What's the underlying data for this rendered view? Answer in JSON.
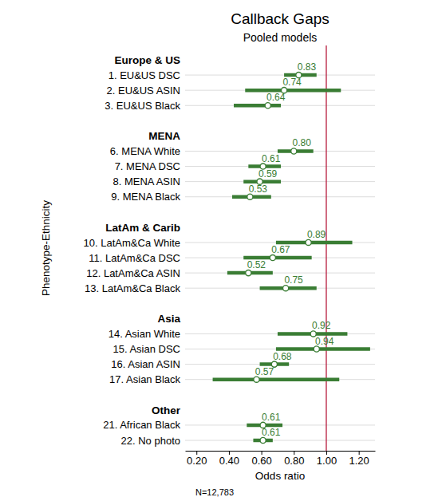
{
  "chart_data": {
    "type": "forest",
    "title": "Callback Gaps",
    "subtitle": "Pooled models",
    "x_label": "Odds ratio",
    "y_label": "Phenotype-Ethnicity",
    "note": "N=12,783",
    "orientation": "horizontal",
    "data_labels": true,
    "grid": true,
    "color": "#3a7d34",
    "xlim": [
      0.13,
      1.3
    ],
    "xticks": [
      {
        "value": 0.2,
        "label": "0.20"
      },
      {
        "value": 0.4,
        "label": "0.40"
      },
      {
        "value": 0.6,
        "label": "0.60"
      },
      {
        "value": 0.8,
        "label": "0.80"
      },
      {
        "value": 1.0,
        "label": "1.00"
      },
      {
        "value": 1.2,
        "label": "1.20"
      }
    ],
    "reference_line": {
      "value": 1,
      "color": "#b5173a"
    },
    "groups": [
      {
        "name": "Europe & US",
        "categories": [
          "1. EU&US DSC",
          "2. EU&US ASIN",
          "3. EU&US Black"
        ],
        "values": [
          0.83,
          0.74,
          0.64
        ],
        "value_labels": [
          "0.83",
          "0.74",
          "0.64"
        ],
        "ci_low": [
          0.74,
          0.5,
          0.43
        ],
        "ci_high": [
          0.94,
          1.09,
          0.72
        ]
      },
      {
        "name": "MENA",
        "categories": [
          "6. MENA White",
          "7. MENA DSC",
          "8. MENA ASIN",
          "9. MENA Black"
        ],
        "values": [
          0.8,
          0.61,
          0.59,
          0.53
        ],
        "value_labels": [
          "0.80",
          "0.61",
          "0.59",
          "0.53"
        ],
        "ci_low": [
          0.7,
          0.52,
          0.49,
          0.42
        ],
        "ci_high": [
          0.92,
          0.72,
          0.72,
          0.66
        ]
      },
      {
        "name": "LatAm & Carib",
        "categories": [
          "10. LatAm&Ca White",
          "11. LatAm&Ca DSC",
          "12. LatAm&Ca ASIN",
          "13. LatAm&Ca Black"
        ],
        "values": [
          0.89,
          0.67,
          0.52,
          0.75
        ],
        "value_labels": [
          "0.89",
          "0.67",
          "0.52",
          "0.75"
        ],
        "ci_low": [
          0.69,
          0.49,
          0.39,
          0.59
        ],
        "ci_high": [
          1.16,
          0.91,
          0.67,
          0.94
        ]
      },
      {
        "name": "Asia",
        "categories": [
          "14. Asian White",
          "15. Asian DSC",
          "16. Asian ASIN",
          "17. Asian Black"
        ],
        "values": [
          0.92,
          0.94,
          0.68,
          0.57
        ],
        "value_labels": [
          "0.92",
          "0.94",
          "0.68",
          "0.57"
        ],
        "ci_low": [
          0.7,
          0.69,
          0.59,
          0.3
        ],
        "ci_high": [
          1.13,
          1.27,
          0.77,
          1.08
        ]
      },
      {
        "name": "Other",
        "categories": [
          "21. African Black",
          "22. No photo"
        ],
        "values": [
          0.61,
          0.61
        ],
        "value_labels": [
          "0.61",
          "0.61"
        ],
        "ci_low": [
          0.51,
          0.55
        ],
        "ci_high": [
          0.73,
          0.67
        ]
      }
    ]
  }
}
